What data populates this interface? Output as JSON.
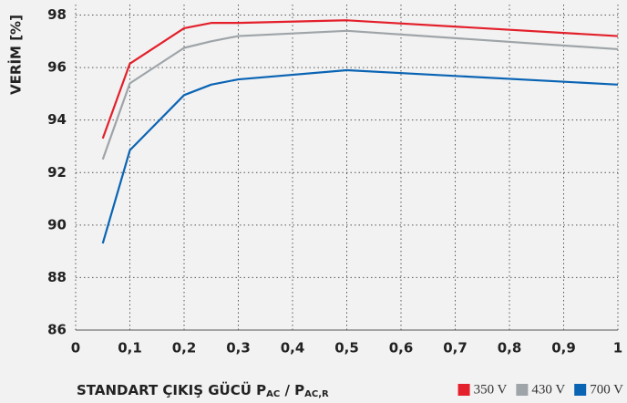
{
  "chart_data": {
    "type": "line",
    "ylabel": "VERİM [%]",
    "xlabel_parts": [
      "STANDART ÇIKIŞ GÜCÜ P",
      "AC",
      " / P",
      "AC,R"
    ],
    "x": [
      0.05,
      0.1,
      0.2,
      0.25,
      0.3,
      0.5,
      1
    ],
    "series": [
      {
        "name": "350 V",
        "color": "#e3202b",
        "values": [
          93.3,
          96.15,
          97.5,
          97.7,
          97.7,
          97.8,
          97.2
        ]
      },
      {
        "name": "430 V",
        "color": "#9ea4a8",
        "values": [
          92.5,
          95.4,
          96.75,
          97.0,
          97.2,
          97.4,
          96.7
        ]
      },
      {
        "name": "700 V",
        "color": "#0a64b4",
        "values": [
          89.3,
          92.85,
          94.95,
          95.35,
          95.55,
          95.9,
          95.35
        ]
      }
    ],
    "xlim": [
      0,
      1
    ],
    "xticks": [
      0,
      {
        "value": 0.1,
        "label": "0,1"
      },
      {
        "value": 0.2,
        "label": "0,2"
      },
      {
        "value": 0.3,
        "label": "0,3"
      },
      {
        "value": 0.4,
        "label": "0,4"
      },
      {
        "value": 0.5,
        "label": "0,5"
      },
      {
        "value": 0.6,
        "label": "0,6"
      },
      {
        "value": 0.7,
        "label": "0,7"
      },
      {
        "value": 0.8,
        "label": "0,8"
      },
      {
        "value": 0.9,
        "label": "0,9"
      },
      1
    ],
    "ylim": [
      86,
      98.4
    ],
    "yticks": [
      86,
      88,
      90,
      92,
      94,
      96,
      98
    ],
    "grid": true,
    "legend": "bottom-right"
  }
}
